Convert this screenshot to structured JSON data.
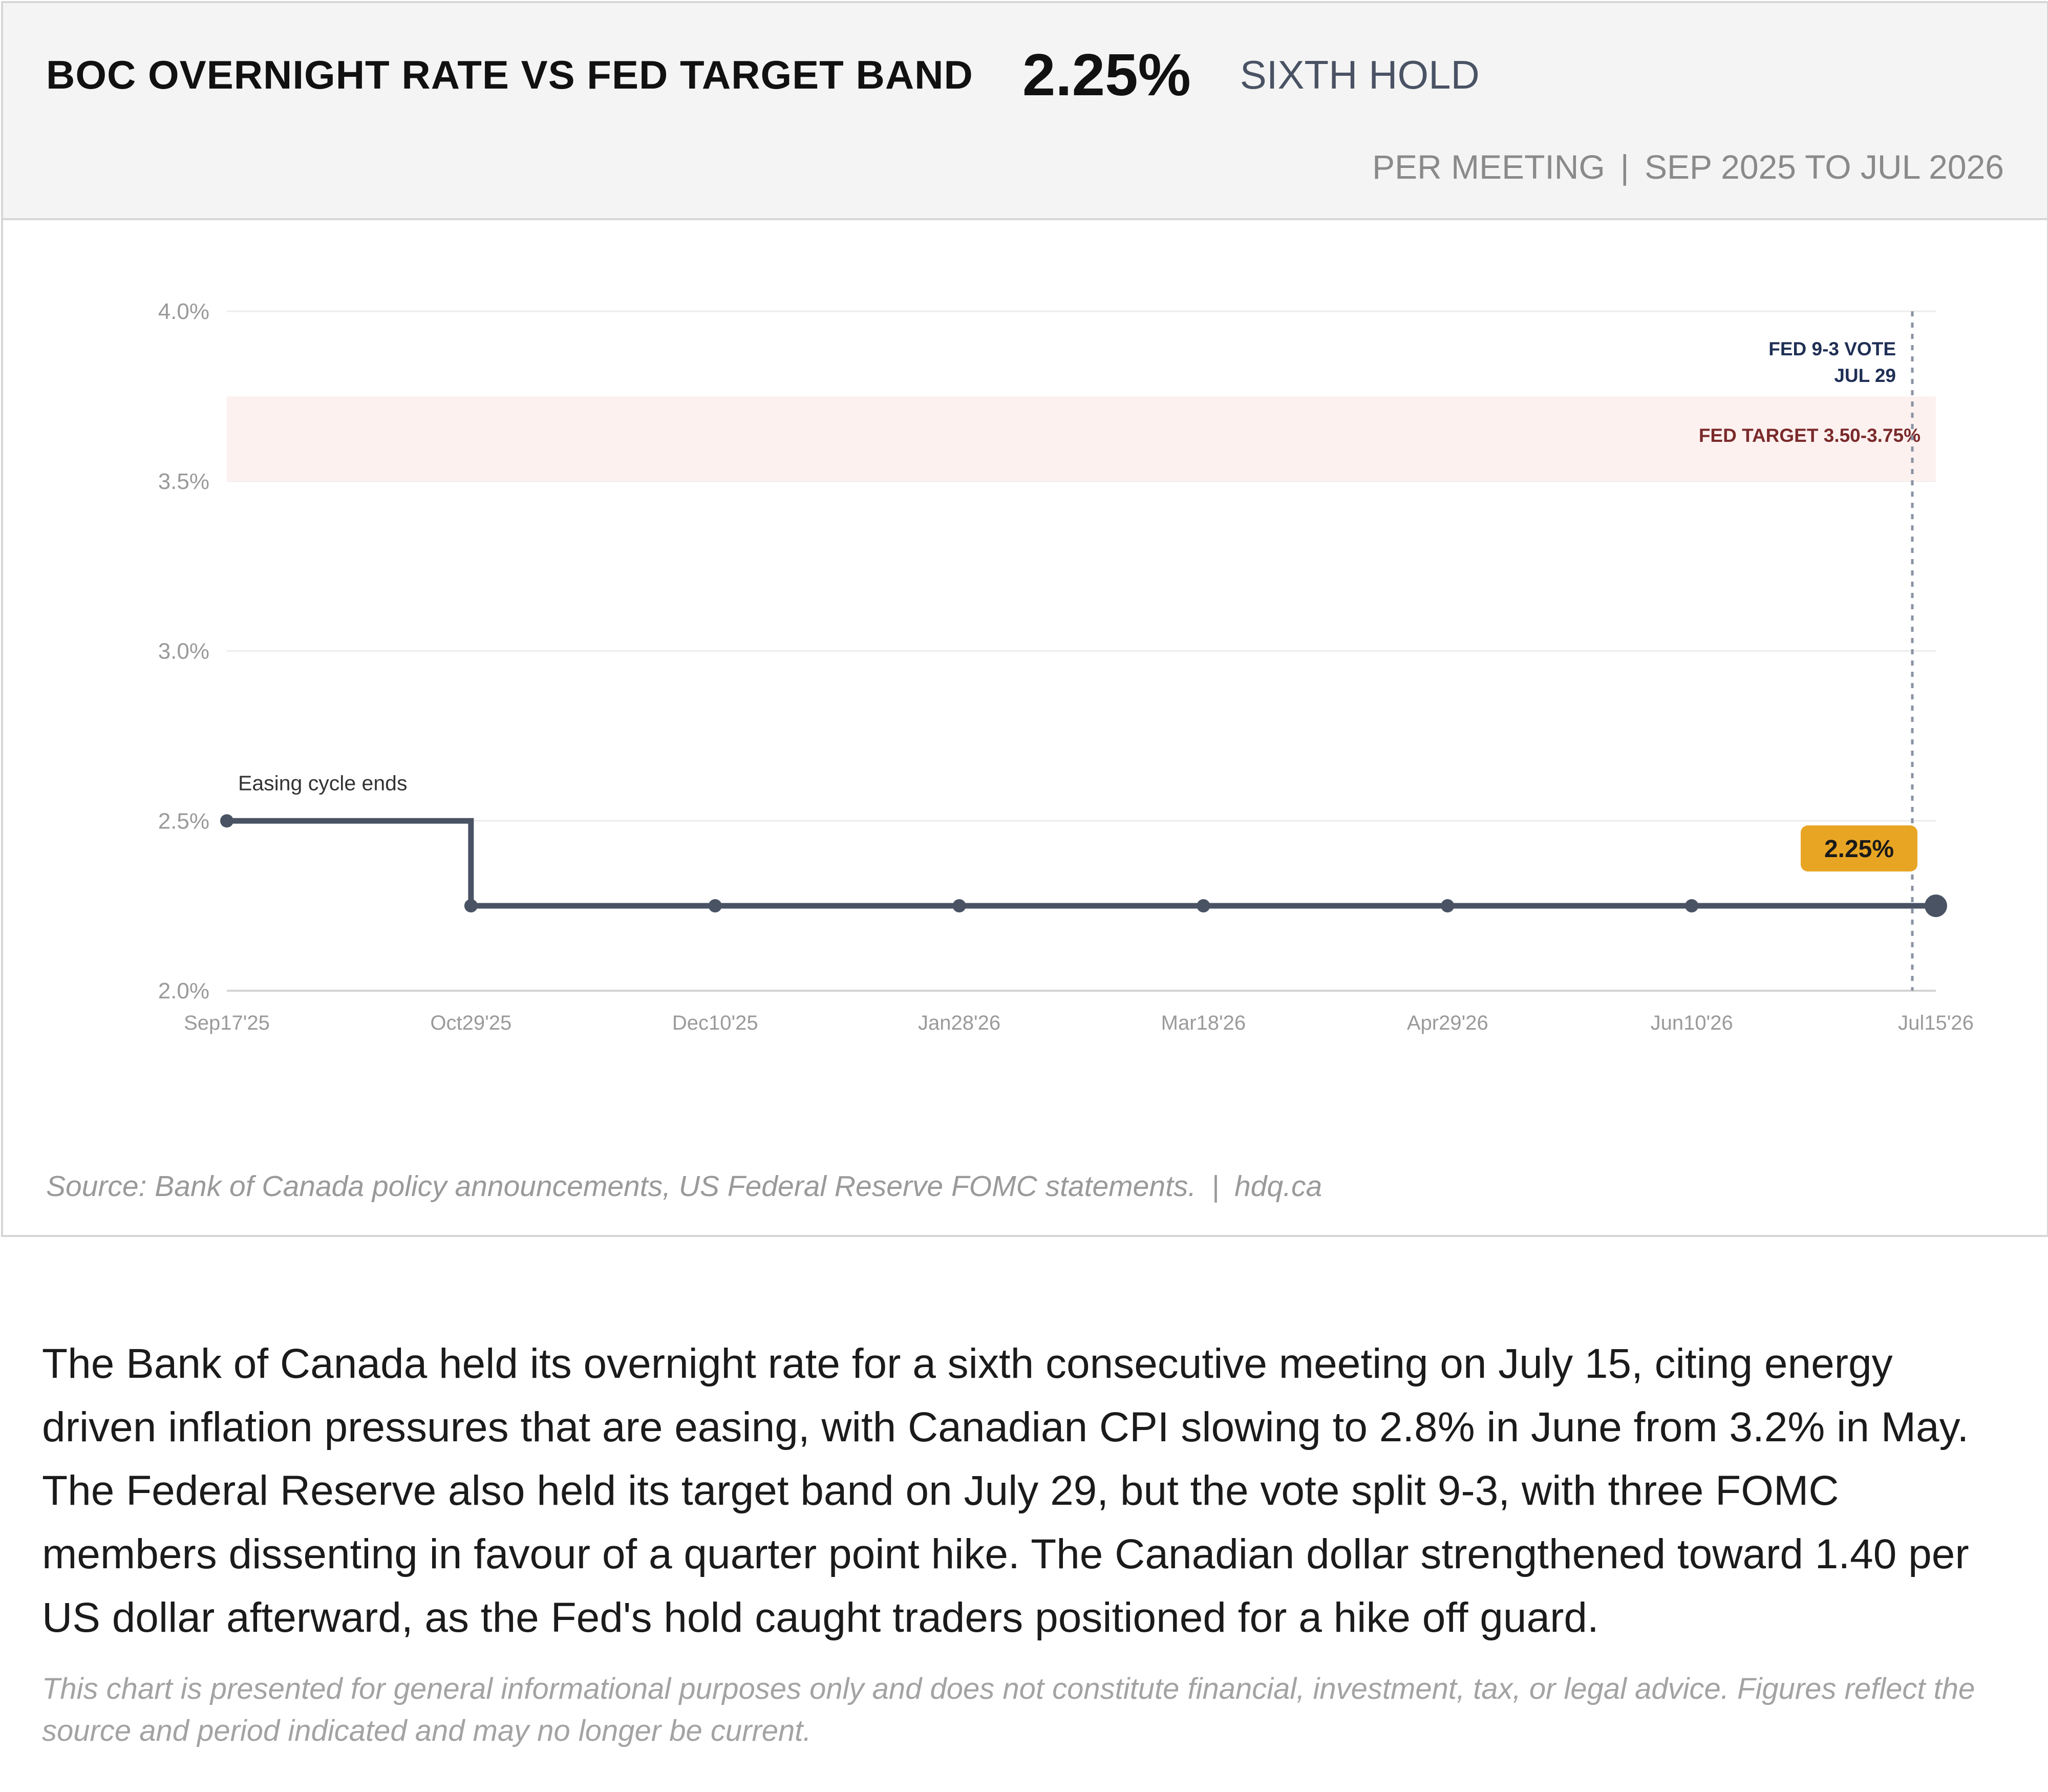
{
  "header": {
    "title": "BOC OVERNIGHT RATE VS FED TARGET BAND",
    "value": "2.25%",
    "status": "SIXTH HOLD",
    "frequency": "PER MEETING",
    "period": "SEP 2025 TO JUL 2026"
  },
  "colors": {
    "line": "#4a5364",
    "band_fill": "#fdf1f0",
    "band_label": "#7a2a2a",
    "vote_label": "#1f2f55",
    "badge": "#e8a524",
    "axis_text": "#9a9a9a",
    "grid": "#ececec"
  },
  "chart_data": {
    "type": "line",
    "step": true,
    "title": "BOC OVERNIGHT RATE VS FED TARGET BAND",
    "x": [
      "Sep17'25",
      "Oct29'25",
      "Dec10'25",
      "Jan28'26",
      "Mar18'26",
      "Apr29'26",
      "Jun10'26",
      "Jul15'26"
    ],
    "series": [
      {
        "name": "",
        "values": [
          2.5,
          2.25,
          2.25,
          2.25,
          2.25,
          2.25,
          2.25,
          2.25
        ]
      }
    ],
    "ylim": [
      2.0,
      4.0
    ],
    "yticks": [
      2.0,
      2.5,
      3.0,
      3.5,
      4.0
    ],
    "ytick_labels": [
      "2.0%",
      "2.5%",
      "3.0%",
      "3.5%",
      "4.0%"
    ],
    "grid": true,
    "band": {
      "low": 3.5,
      "high": 3.75,
      "label": "FED TARGET 3.50-3.75%"
    },
    "vline": {
      "x": "Jul15'26",
      "label_line1": "FED 9-3 VOTE",
      "label_line2": "JUL 29"
    },
    "annotations": [
      {
        "x": "Sep17'25",
        "y": 2.5,
        "text": "Easing cycle ends"
      },
      {
        "x": "Jul15'26",
        "y": 2.25,
        "text": "2.25%",
        "style": "badge"
      }
    ]
  },
  "footer": {
    "source": "Source: Bank of Canada policy announcements, US Federal Reserve FOMC statements.",
    "site": "hdq.ca"
  },
  "body_text": "The Bank of Canada held its overnight rate for a sixth consecutive meeting on July 15, citing energy driven inflation pressures that are easing, with Canadian CPI slowing to 2.8% in June from 3.2% in May. The Federal Reserve also held its target band on July 29, but the vote split 9-3, with three FOMC members dissenting in favour of a quarter point hike. The Canadian dollar strengthened toward 1.40 per US dollar afterward, as the Fed's hold caught traders positioned for a hike off guard.",
  "disclaimer": "This chart is presented for general informational purposes only and does not constitute financial, investment, tax, or legal advice. Figures reflect the source and period indicated and may no longer be current."
}
